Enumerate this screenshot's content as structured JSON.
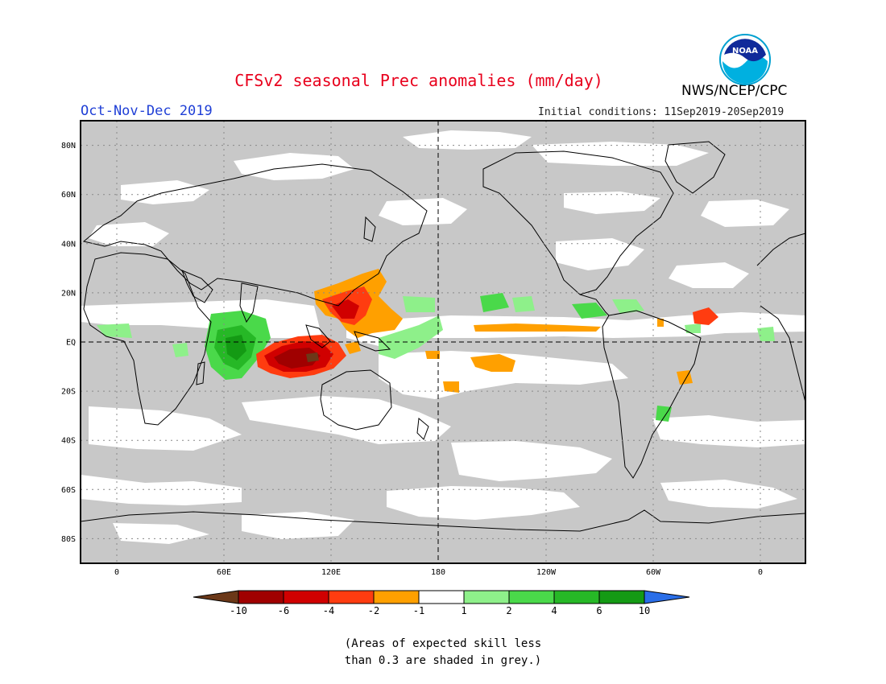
{
  "header": {
    "title": "CFSv2 seasonal Prec anomalies (mm/day)",
    "season": "Oct-Nov-Dec 2019",
    "initial_conditions": "Initial conditions: 11Sep2019-20Sep2019",
    "agency": "NWS/NCEP/CPC",
    "logo_text": "NOAA"
  },
  "map": {
    "projection": "equirectangular, centered 180",
    "lat_labels": [
      "80N",
      "60N",
      "40N",
      "20N",
      "EQ",
      "20S",
      "40S",
      "60S",
      "80S"
    ],
    "lon_labels": [
      "0",
      "60E",
      "120E",
      "180",
      "120W",
      "60W",
      "0"
    ],
    "background_grey": "#c8c8c8",
    "land_outline_color": "#000000",
    "reference_lines": [
      "Equator (dashed)",
      "180 meridian (dashed)"
    ]
  },
  "colorbar": {
    "labels": [
      "-10",
      "-6",
      "-4",
      "-2",
      "-1",
      "1",
      "2",
      "4",
      "6",
      "10"
    ],
    "colors": [
      "#6b3818",
      "#a00000",
      "#d00000",
      "#ff3c10",
      "#ffa000",
      "#ffffff",
      "#8ef08a",
      "#4ad94a",
      "#26b826",
      "#149a14",
      "#2a6ee8"
    ]
  },
  "note": {
    "line1": "(Areas of expected skill less",
    "line2": "than 0.3 are shaded in grey.)"
  }
}
